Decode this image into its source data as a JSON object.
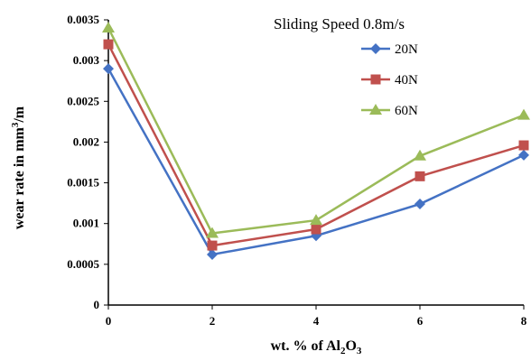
{
  "chart_data": {
    "type": "line",
    "title": "",
    "legend_title": "Sliding Speed 0.8m/s",
    "legend_position": "top-right",
    "xlabel": {
      "pre": "wt. % of Al",
      "sub1": "2",
      "mid": "O",
      "sub2": "3"
    },
    "ylabel": {
      "pre": "wear rate in mm",
      "sup": "3",
      "post": "/m"
    },
    "x": [
      0,
      2,
      4,
      6,
      8
    ],
    "xlim": [
      0,
      8
    ],
    "ylim": [
      0,
      0.0035
    ],
    "x_ticks": [
      "0",
      "2",
      "4",
      "6",
      "8"
    ],
    "y_ticks": [
      "0",
      "0.0005",
      "0.001",
      "0.0015",
      "0.002",
      "0.0025",
      "0.003",
      "0.0035"
    ],
    "y_tick_values": [
      0,
      0.0005,
      0.001,
      0.0015,
      0.002,
      0.0025,
      0.003,
      0.0035
    ],
    "grid": false,
    "series": [
      {
        "name": "20N",
        "color": "#4472C4",
        "marker": "diamond",
        "values": [
          0.0029,
          0.00062,
          0.00085,
          0.00124,
          0.00184
        ]
      },
      {
        "name": "40N",
        "color": "#C0504D",
        "marker": "square",
        "values": [
          0.0032,
          0.00073,
          0.00093,
          0.00158,
          0.00196
        ]
      },
      {
        "name": "60N",
        "color": "#9BBB59",
        "marker": "triangle",
        "values": [
          0.0034,
          0.00088,
          0.00104,
          0.00183,
          0.00233
        ]
      }
    ]
  }
}
